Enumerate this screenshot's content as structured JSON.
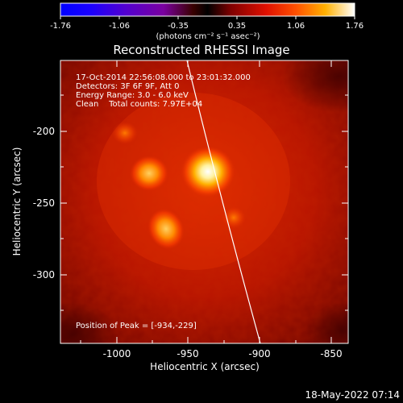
{
  "colorbar": {
    "ticks": [
      "-1.76",
      "-1.06",
      "-0.35",
      "0.35",
      "1.06",
      "1.76"
    ],
    "unit_label": "(photons cm⁻² s⁻¹ asec⁻²)"
  },
  "title": "Reconstructed RHESSI Image",
  "info": {
    "line1": "17-Oct-2014 22:56:08.000 to 23:01:32.000",
    "line2": "Detectors: 3F 6F 9F, Att 0",
    "line3": "Energy Range: 3.0 - 6.0 keV",
    "line4": "Clean    Total counts: 7.97E+04"
  },
  "peak_label": "Position of Peak = [-934,-229]",
  "x_axis": {
    "label": "Heliocentric X (arcsec)",
    "ticks": [
      "-1000",
      "-950",
      "-900",
      "-850"
    ]
  },
  "y_axis": {
    "label": "Heliocentric Y (arcsec)",
    "ticks": [
      "-200",
      "-250",
      "-300"
    ]
  },
  "timestamp": "18-May-2022 07:14",
  "colors": {
    "background": "#000000",
    "limb_line": "#ffffff"
  }
}
